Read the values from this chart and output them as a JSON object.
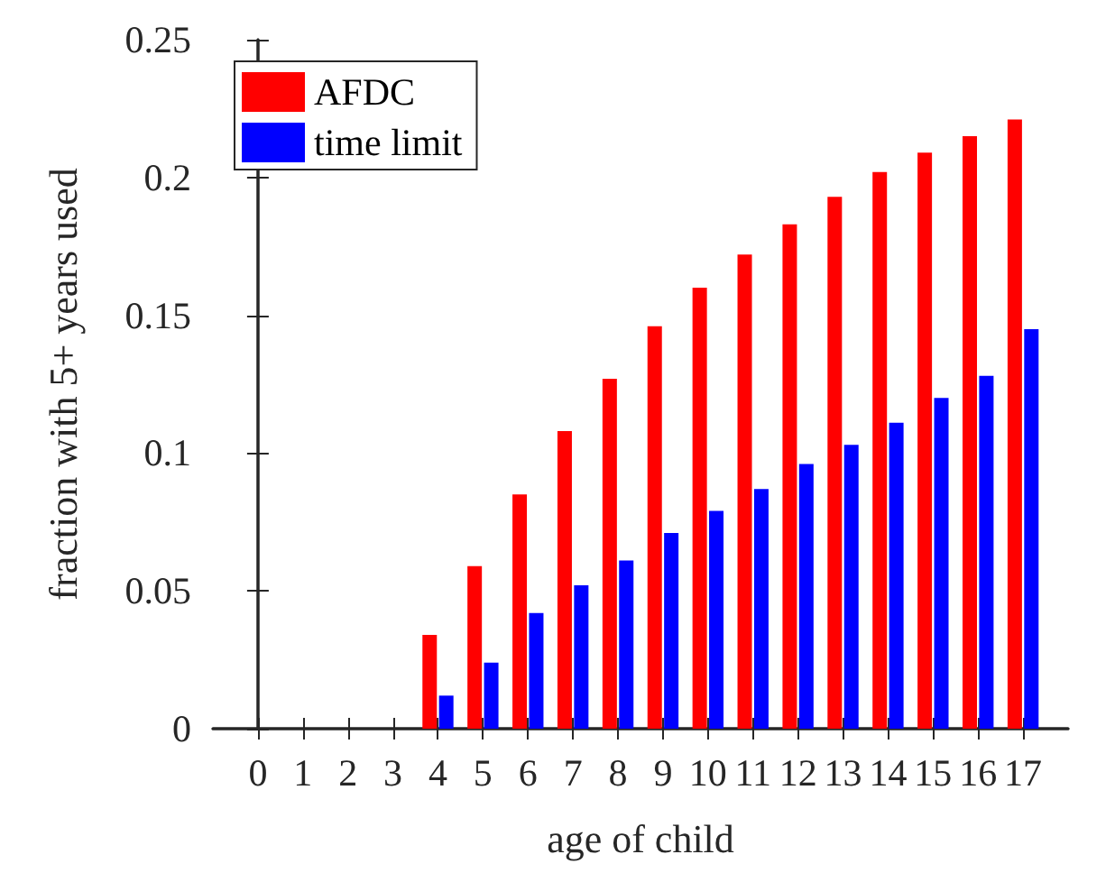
{
  "chart_data": {
    "type": "bar",
    "xlabel": "age of child",
    "ylabel": "fraction with 5+ years used",
    "x": [
      0,
      1,
      2,
      3,
      4,
      5,
      6,
      7,
      8,
      9,
      10,
      11,
      12,
      13,
      14,
      15,
      16,
      17
    ],
    "xlim": [
      -1,
      18
    ],
    "xticks": [
      0,
      1,
      2,
      3,
      4,
      5,
      6,
      7,
      8,
      9,
      10,
      11,
      12,
      13,
      14,
      15,
      16,
      17
    ],
    "ylim": [
      0,
      0.25
    ],
    "yticks": [
      0,
      0.05,
      0.1,
      0.15,
      0.2,
      0.25
    ],
    "grid": false,
    "legend": "top left",
    "series": [
      {
        "name": "AFDC",
        "color": "#ff0000",
        "values": [
          0,
          0,
          0,
          0,
          0.034,
          0.059,
          0.085,
          0.108,
          0.127,
          0.146,
          0.16,
          0.172,
          0.183,
          0.193,
          0.202,
          0.209,
          0.215,
          0.221
        ]
      },
      {
        "name": "time limit",
        "color": "#0000ff",
        "values": [
          0,
          0,
          0,
          0,
          0.012,
          0.024,
          0.042,
          0.052,
          0.061,
          0.071,
          0.079,
          0.087,
          0.096,
          0.103,
          0.111,
          0.12,
          0.128,
          0.145
        ]
      }
    ]
  }
}
